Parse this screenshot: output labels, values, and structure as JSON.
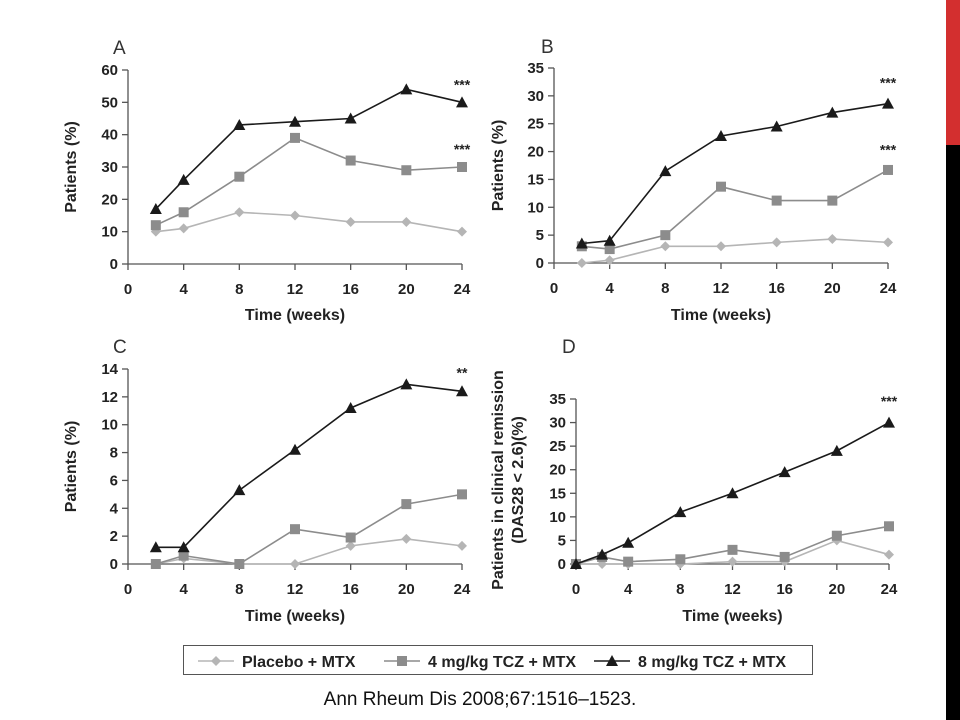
{
  "slide": {
    "accent_red": "#d32f2f",
    "accent_black": "#000000",
    "citation": "Ann Rheum Dis 2008;67:1516–1523."
  },
  "legend": {
    "items": [
      {
        "label": "Placebo + MTX",
        "color": "#b5b5b5",
        "marker": "diamond"
      },
      {
        "label": "4 mg/kg TCZ + MTX",
        "color": "#8c8c8c",
        "marker": "square"
      },
      {
        "label": "8 mg/kg TCZ + MTX",
        "color": "#1a1a1a",
        "marker": "triangle"
      }
    ]
  },
  "chart_data": [
    {
      "panel": "A",
      "type": "line",
      "xlabel": "Time (weeks)",
      "ylabel": "Patients (%)",
      "xlim": [
        0,
        24
      ],
      "ylim": [
        0,
        60
      ],
      "xticks": [
        0,
        4,
        8,
        12,
        16,
        20,
        24
      ],
      "yticks": [
        0,
        10,
        20,
        30,
        40,
        50,
        60
      ],
      "series": [
        {
          "name": "Placebo + MTX",
          "x": [
            2,
            4,
            8,
            12,
            16,
            20,
            24
          ],
          "values": [
            10,
            11,
            16,
            15,
            13,
            13,
            10
          ]
        },
        {
          "name": "4 mg/kg TCZ + MTX",
          "x": [
            2,
            4,
            8,
            12,
            16,
            20,
            24
          ],
          "values": [
            12,
            16,
            27,
            39,
            32,
            29,
            30
          ]
        },
        {
          "name": "8 mg/kg TCZ + MTX",
          "x": [
            2,
            4,
            8,
            12,
            16,
            20,
            24
          ],
          "values": [
            17,
            26,
            43,
            44,
            45,
            54,
            50
          ]
        }
      ],
      "annotations": [
        {
          "text": "***",
          "x": 24,
          "y": 54
        },
        {
          "text": "***",
          "x": 24,
          "y": 34
        }
      ]
    },
    {
      "panel": "B",
      "type": "line",
      "xlabel": "Time (weeks)",
      "ylabel": "Patients (%)",
      "xlim": [
        0,
        24
      ],
      "ylim": [
        0,
        35
      ],
      "xticks": [
        0,
        4,
        8,
        12,
        16,
        20,
        24
      ],
      "yticks": [
        0,
        5,
        10,
        15,
        20,
        25,
        30,
        35
      ],
      "series": [
        {
          "name": "Placebo + MTX",
          "x": [
            2,
            4,
            8,
            12,
            16,
            20,
            24
          ],
          "values": [
            0,
            0.5,
            3,
            3,
            3.7,
            4.3,
            3.7
          ]
        },
        {
          "name": "4 mg/kg TCZ + MTX",
          "x": [
            2,
            4,
            8,
            12,
            16,
            20,
            24
          ],
          "values": [
            3,
            2.5,
            5,
            13.7,
            11.2,
            11.2,
            16.7
          ]
        },
        {
          "name": "8 mg/kg TCZ + MTX",
          "x": [
            2,
            4,
            8,
            12,
            16,
            20,
            24
          ],
          "values": [
            3.5,
            4,
            16.5,
            22.8,
            24.5,
            27,
            28.6
          ]
        }
      ],
      "annotations": [
        {
          "text": "***",
          "x": 24,
          "y": 31.5
        },
        {
          "text": "***",
          "x": 24,
          "y": 19.5
        }
      ]
    },
    {
      "panel": "C",
      "type": "line",
      "xlabel": "Time (weeks)",
      "ylabel": "Patients (%)",
      "xlim": [
        0,
        24
      ],
      "ylim": [
        0,
        14
      ],
      "xticks": [
        0,
        4,
        8,
        12,
        16,
        20,
        24
      ],
      "yticks": [
        0,
        2,
        4,
        6,
        8,
        10,
        12,
        14
      ],
      "series": [
        {
          "name": "Placebo + MTX",
          "x": [
            2,
            4,
            8,
            12,
            16,
            20,
            24
          ],
          "values": [
            0,
            0.4,
            0,
            0,
            1.3,
            1.8,
            1.3
          ]
        },
        {
          "name": "4 mg/kg TCZ + MTX",
          "x": [
            2,
            4,
            8,
            12,
            16,
            20,
            24
          ],
          "values": [
            0,
            0.6,
            0,
            2.5,
            1.9,
            4.3,
            5
          ]
        },
        {
          "name": "8 mg/kg TCZ + MTX",
          "x": [
            2,
            4,
            8,
            12,
            16,
            20,
            24
          ],
          "values": [
            1.2,
            1.2,
            5.3,
            8.2,
            11.2,
            12.9,
            12.4
          ]
        }
      ],
      "annotations": [
        {
          "text": "**",
          "x": 24,
          "y": 13.4
        }
      ]
    },
    {
      "panel": "D",
      "type": "line",
      "xlabel": "Time (weeks)",
      "ylabel": "Patients in clinical remission (DAS28 < 2.6)(%)",
      "ylabel_lines": [
        "Patients in clinical remission",
        "(DAS28 < 2.6)(%)"
      ],
      "xlim": [
        0,
        24
      ],
      "ylim": [
        0,
        35
      ],
      "xticks": [
        0,
        4,
        8,
        12,
        16,
        20,
        24
      ],
      "yticks": [
        0,
        5,
        10,
        15,
        20,
        25,
        30,
        35
      ],
      "series": [
        {
          "name": "Placebo + MTX",
          "x": [
            0,
            2,
            4,
            8,
            12,
            16,
            20,
            24
          ],
          "values": [
            0,
            0,
            0,
            0,
            0.5,
            0.5,
            5,
            2
          ]
        },
        {
          "name": "4 mg/kg TCZ + MTX",
          "x": [
            0,
            2,
            4,
            8,
            12,
            16,
            20,
            24
          ],
          "values": [
            0,
            1.5,
            0.5,
            1,
            3,
            1.5,
            6,
            8
          ]
        },
        {
          "name": "8 mg/kg TCZ + MTX",
          "x": [
            0,
            2,
            4,
            8,
            12,
            16,
            20,
            24
          ],
          "values": [
            0,
            2,
            4.5,
            11,
            15,
            19.5,
            24,
            30
          ]
        }
      ],
      "annotations": [
        {
          "text": "***",
          "x": 24,
          "y": 33.5
        }
      ]
    }
  ]
}
